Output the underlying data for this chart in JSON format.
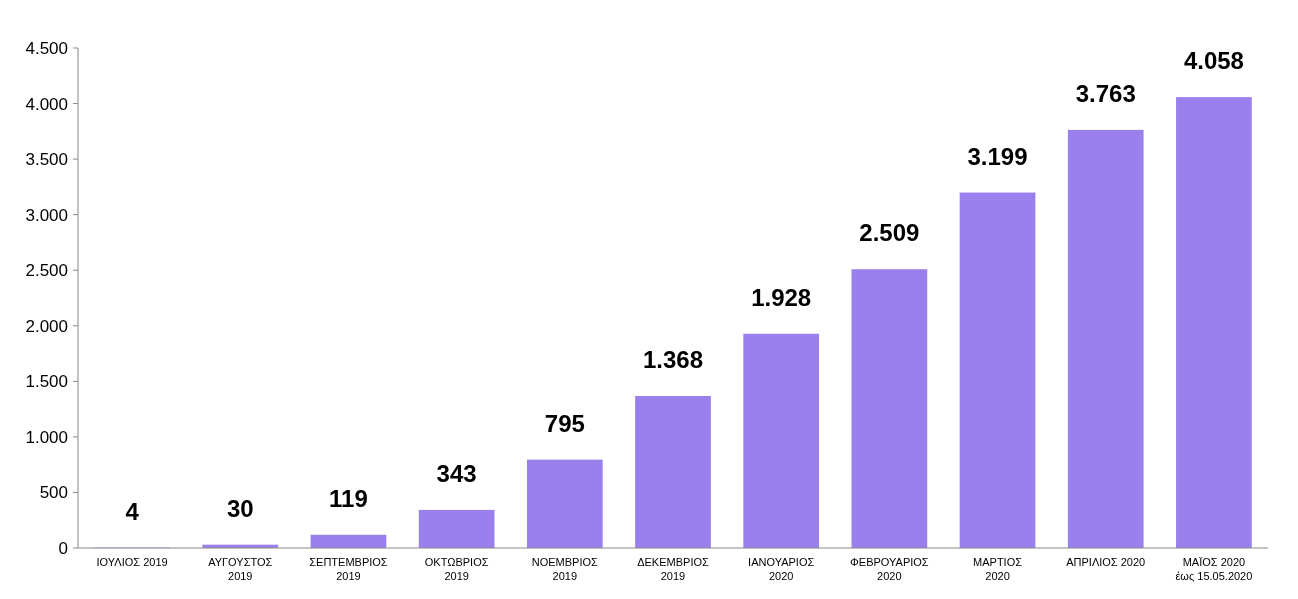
{
  "chart_data": {
    "type": "bar",
    "categories": [
      "ΙΟΥΛΙΟΣ 2019",
      "ΑΥΓΟΥΣΤΟΣ\n2019",
      "ΣΕΠΤΕΜΒΡΙΟΣ\n2019",
      "ΟΚΤΩΒΡΙΟΣ\n2019",
      "ΝΟΕΜΒΡΙΟΣ\n2019",
      "ΔΕΚΕΜΒΡΙΟΣ\n2019",
      "ΙΑΝΟΥΑΡΙΟΣ\n2020",
      "ΦΕΒΡΟΥΑΡΙΟΣ\n2020",
      "ΜΑΡΤΙΟΣ\n2020",
      "ΑΠΡΙΛΙΟΣ 2020",
      "ΜΑΪΟΣ 2020\nέως 15.05.2020"
    ],
    "values": [
      4,
      30,
      119,
      343,
      795,
      1368,
      1928,
      2509,
      3199,
      3763,
      4058
    ],
    "color": "#9a80ec",
    "ylim": [
      0,
      4500
    ],
    "yticks": [
      0,
      {
        "value": 500,
        "label": "500"
      },
      {
        "value": 1000,
        "label": "1.000"
      },
      {
        "value": 1500,
        "label": "1.500"
      },
      {
        "value": 2000,
        "label": "2.000"
      },
      {
        "value": 2500,
        "label": "2.500"
      },
      {
        "value": 3000,
        "label": "3.000"
      },
      {
        "value": 3500,
        "label": "3.500"
      },
      {
        "value": 4000,
        "label": "4.000"
      },
      {
        "value": 4500,
        "label": "4.500"
      }
    ],
    "value_labels": [
      "4",
      "30",
      "119",
      "343",
      "795",
      "1.368",
      "1.928",
      "2.509",
      "3.199",
      "3.763",
      "4.058"
    ],
    "grid": false
  }
}
